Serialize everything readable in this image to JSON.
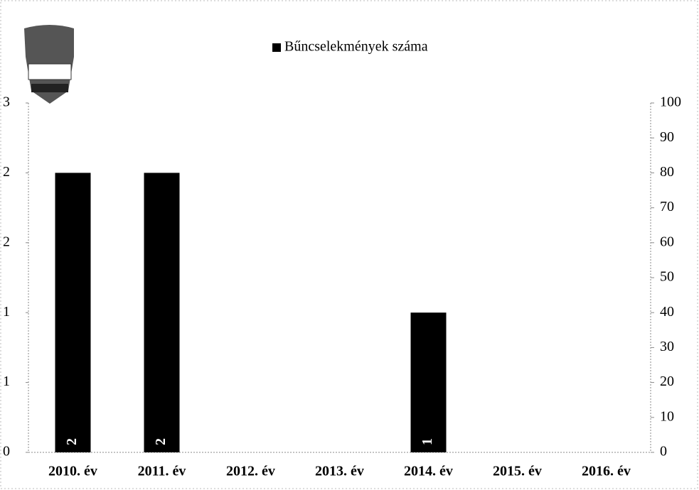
{
  "chart_data": {
    "type": "bar",
    "legend": "Bűncselekmények száma",
    "categories": [
      "2010. év",
      "2011. év",
      "2012. év",
      "2013. év",
      "2014. év",
      "2015. év",
      "2016. év"
    ],
    "values": [
      2,
      2,
      null,
      null,
      1,
      null,
      null
    ],
    "color": "#000000",
    "ylim": [
      0,
      2.5
    ],
    "yticks": [
      0,
      {
        "value": 0.5,
        "label": "1"
      },
      1,
      {
        "value": 1.5,
        "label": "2"
      },
      2,
      {
        "value": 2.5,
        "label": "3"
      }
    ],
    "y2lim": [
      0,
      100
    ],
    "y2ticks": [
      0,
      10,
      20,
      30,
      40,
      50,
      60,
      70,
      80,
      90,
      100
    ]
  }
}
